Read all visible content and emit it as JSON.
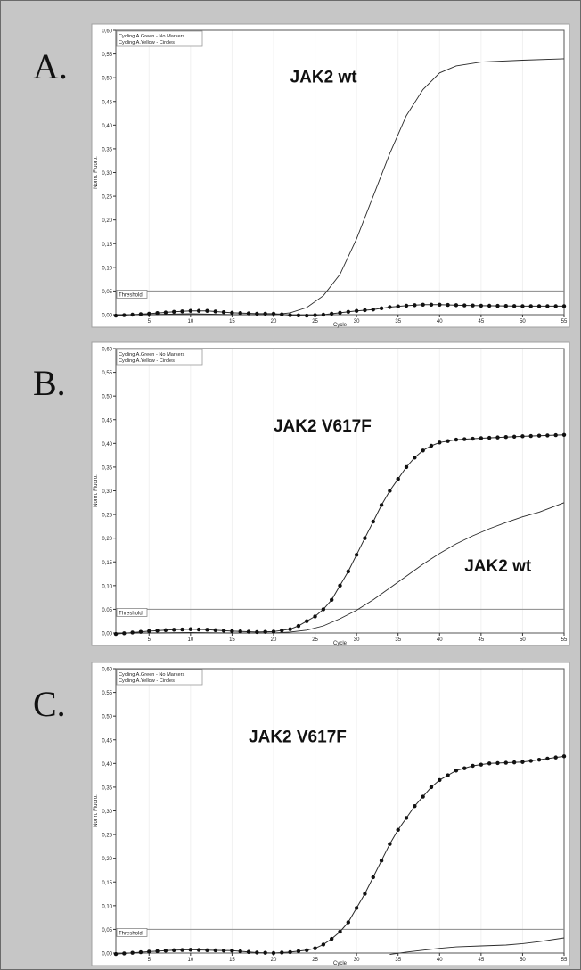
{
  "chart_data": [
    {
      "panel_label": "A.",
      "type": "line",
      "xlabel": "Cycle",
      "ylabel": "Norm. Fluoro.",
      "xlim": [
        1,
        55
      ],
      "ylim": [
        0,
        0.6
      ],
      "x_ticks": [
        5,
        10,
        15,
        20,
        25,
        30,
        35,
        40,
        45,
        50,
        55
      ],
      "y_ticks": [
        "0,00",
        "0,05",
        "0,10",
        "0,15",
        "0,20",
        "0,25",
        "0,30",
        "0,35",
        "0,40",
        "0,45",
        "0,50",
        "0,55",
        "0,60"
      ],
      "legend": [
        "Cycling A.Green - No Markers",
        "Cycling A.Yellow - Circles"
      ],
      "threshold": {
        "label": "Threshold",
        "value": 0.05
      },
      "annotations": [
        {
          "text": "JAK2 wt",
          "x": 22,
          "y": 0.49
        }
      ],
      "series": [
        {
          "name": "Cycling A.Green - No Markers",
          "marker": "none",
          "points": [
            [
              1,
              0.0
            ],
            [
              5,
              0.0
            ],
            [
              10,
              0.002
            ],
            [
              15,
              0.0
            ],
            [
              20,
              0.0
            ],
            [
              22,
              0.004
            ],
            [
              24,
              0.015
            ],
            [
              26,
              0.04
            ],
            [
              28,
              0.085
            ],
            [
              30,
              0.16
            ],
            [
              32,
              0.25
            ],
            [
              34,
              0.34
            ],
            [
              36,
              0.42
            ],
            [
              38,
              0.475
            ],
            [
              40,
              0.51
            ],
            [
              42,
              0.525
            ],
            [
              45,
              0.533
            ],
            [
              50,
              0.537
            ],
            [
              55,
              0.54
            ]
          ]
        },
        {
          "name": "Cycling A.Yellow - Circles",
          "marker": "circle",
          "points": [
            [
              1,
              -0.002
            ],
            [
              5,
              0.002
            ],
            [
              8,
              0.006
            ],
            [
              10,
              0.008
            ],
            [
              12,
              0.008
            ],
            [
              15,
              0.004
            ],
            [
              18,
              0.002
            ],
            [
              20,
              0.002
            ],
            [
              22,
              -0.001
            ],
            [
              24,
              -0.002
            ],
            [
              26,
              0.0
            ],
            [
              28,
              0.004
            ],
            [
              30,
              0.008
            ],
            [
              32,
              0.011
            ],
            [
              34,
              0.016
            ],
            [
              36,
              0.019
            ],
            [
              38,
              0.021
            ],
            [
              40,
              0.021
            ],
            [
              42,
              0.02
            ],
            [
              45,
              0.019
            ],
            [
              50,
              0.018
            ],
            [
              55,
              0.018
            ]
          ]
        }
      ]
    },
    {
      "panel_label": "B.",
      "type": "line",
      "xlabel": "Cycle",
      "ylabel": "Norm. Fluoro.",
      "xlim": [
        1,
        55
      ],
      "ylim": [
        0,
        0.6
      ],
      "x_ticks": [
        5,
        10,
        15,
        20,
        25,
        30,
        35,
        40,
        45,
        50,
        55
      ],
      "y_ticks": [
        "0,00",
        "0,05",
        "0,10",
        "0,15",
        "0,20",
        "0,25",
        "0,30",
        "0,35",
        "0,40",
        "0,45",
        "0,50",
        "0,55",
        "0,60"
      ],
      "legend": [
        "Cycling A.Green - No Markers",
        "Cycling A.Yellow - Circles"
      ],
      "threshold": {
        "label": "Threshold",
        "value": 0.05
      },
      "annotations": [
        {
          "text": "JAK2 V617F",
          "x": 20,
          "y": 0.425
        },
        {
          "text": "JAK2 wt",
          "x": 43,
          "y": 0.13
        }
      ],
      "series": [
        {
          "name": "Cycling A.Green - No Markers",
          "marker": "none",
          "points": [
            [
              1,
              0.0
            ],
            [
              5,
              0.0
            ],
            [
              10,
              0.001
            ],
            [
              15,
              0.0
            ],
            [
              20,
              0.0
            ],
            [
              22,
              0.002
            ],
            [
              24,
              0.006
            ],
            [
              26,
              0.015
            ],
            [
              28,
              0.03
            ],
            [
              30,
              0.048
            ],
            [
              32,
              0.07
            ],
            [
              34,
              0.095
            ],
            [
              36,
              0.12
            ],
            [
              38,
              0.145
            ],
            [
              40,
              0.168
            ],
            [
              42,
              0.188
            ],
            [
              44,
              0.205
            ],
            [
              46,
              0.22
            ],
            [
              48,
              0.233
            ],
            [
              50,
              0.245
            ],
            [
              52,
              0.255
            ],
            [
              55,
              0.275
            ]
          ]
        },
        {
          "name": "Cycling A.Yellow - Circles",
          "marker": "circle",
          "points": [
            [
              1,
              -0.002
            ],
            [
              5,
              0.004
            ],
            [
              8,
              0.007
            ],
            [
              10,
              0.008
            ],
            [
              12,
              0.007
            ],
            [
              15,
              0.004
            ],
            [
              18,
              0.002
            ],
            [
              20,
              0.003
            ],
            [
              22,
              0.008
            ],
            [
              23,
              0.015
            ],
            [
              24,
              0.025
            ],
            [
              25,
              0.035
            ],
            [
              26,
              0.05
            ],
            [
              27,
              0.07
            ],
            [
              28,
              0.1
            ],
            [
              29,
              0.13
            ],
            [
              30,
              0.165
            ],
            [
              31,
              0.2
            ],
            [
              32,
              0.235
            ],
            [
              33,
              0.27
            ],
            [
              34,
              0.3
            ],
            [
              35,
              0.325
            ],
            [
              36,
              0.35
            ],
            [
              37,
              0.37
            ],
            [
              38,
              0.385
            ],
            [
              39,
              0.395
            ],
            [
              40,
              0.402
            ],
            [
              42,
              0.408
            ],
            [
              45,
              0.411
            ],
            [
              50,
              0.415
            ],
            [
              55,
              0.418
            ]
          ]
        }
      ]
    },
    {
      "panel_label": "C.",
      "type": "line",
      "xlabel": "Cycle",
      "ylabel": "Norm. Fluoro.",
      "xlim": [
        1,
        55
      ],
      "ylim": [
        0,
        0.6
      ],
      "x_ticks": [
        5,
        10,
        15,
        20,
        25,
        30,
        35,
        40,
        45,
        50,
        55
      ],
      "y_ticks": [
        "0,00",
        "0,05",
        "0,10",
        "0,15",
        "0,20",
        "0,25",
        "0,30",
        "0,35",
        "0,40",
        "0,45",
        "0,50",
        "0,55",
        "0,60"
      ],
      "legend": [
        "Cycling A.Green - No Markers",
        "Cycling A.Yellow - Circles"
      ],
      "threshold": {
        "label": "Threshold",
        "value": 0.05
      },
      "annotations": [
        {
          "text": "JAK2 V617F",
          "x": 17,
          "y": 0.445
        }
      ],
      "series": [
        {
          "name": "Cycling A.Green - No Markers",
          "marker": "none",
          "points": [
            [
              34,
              -0.003
            ],
            [
              36,
              0.002
            ],
            [
              38,
              0.006
            ],
            [
              40,
              0.01
            ],
            [
              42,
              0.013
            ],
            [
              45,
              0.015
            ],
            [
              48,
              0.017
            ],
            [
              50,
              0.02
            ],
            [
              52,
              0.024
            ],
            [
              55,
              0.032
            ]
          ]
        },
        {
          "name": "Cycling A.Yellow - Circles",
          "marker": "circle",
          "points": [
            [
              1,
              -0.002
            ],
            [
              5,
              0.003
            ],
            [
              8,
              0.006
            ],
            [
              10,
              0.007
            ],
            [
              12,
              0.006
            ],
            [
              15,
              0.005
            ],
            [
              18,
              0.001
            ],
            [
              20,
              0.0
            ],
            [
              22,
              0.002
            ],
            [
              24,
              0.006
            ],
            [
              25,
              0.01
            ],
            [
              26,
              0.018
            ],
            [
              27,
              0.03
            ],
            [
              28,
              0.045
            ],
            [
              29,
              0.065
            ],
            [
              30,
              0.095
            ],
            [
              31,
              0.125
            ],
            [
              32,
              0.16
            ],
            [
              33,
              0.195
            ],
            [
              34,
              0.23
            ],
            [
              35,
              0.26
            ],
            [
              36,
              0.285
            ],
            [
              37,
              0.31
            ],
            [
              38,
              0.33
            ],
            [
              39,
              0.35
            ],
            [
              40,
              0.365
            ],
            [
              42,
              0.385
            ],
            [
              44,
              0.395
            ],
            [
              46,
              0.4
            ],
            [
              50,
              0.403
            ],
            [
              55,
              0.415
            ]
          ]
        }
      ]
    }
  ]
}
